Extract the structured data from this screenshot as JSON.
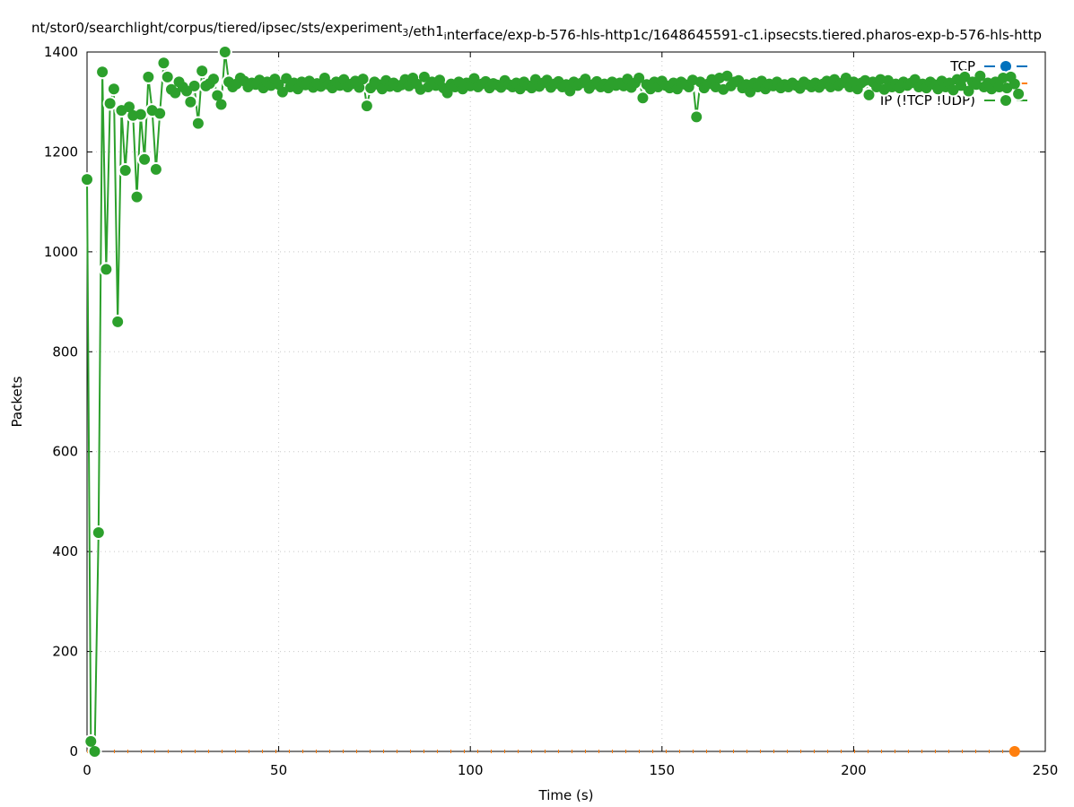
{
  "chart_data": {
    "type": "line",
    "title": "nt/stor0/searchlight/corpus/tiered/ipsec/sts/experiment_3/eth1_interface/exp-b-576-hls-http1c/1648645591-c1.ipsecsts.tiered.pharos-exp-b-576-hls-http",
    "xlabel": "Time (s)",
    "ylabel": "Packets",
    "xlim": [
      0,
      250
    ],
    "ylim": [
      0,
      1400
    ],
    "xticks": [
      "0",
      "50",
      "100",
      "150",
      "200",
      "250"
    ],
    "yticks": [
      "0",
      "200",
      "400",
      "600",
      "800",
      "1000",
      "1200",
      "1400"
    ],
    "grid": true,
    "legend_placement": "top-right",
    "series": [
      {
        "name": "TCP",
        "color": "#0072bd",
        "x": [],
        "values": []
      },
      {
        "name": "UDP",
        "color": "#ff7f0e",
        "x": [
          0,
          242
        ],
        "values": [
          0,
          0
        ]
      },
      {
        "name": "IP (!TCP !UDP)",
        "color": "#2ca02c",
        "values": [
          1145,
          20,
          0,
          438,
          1360,
          965,
          1297,
          1326,
          860,
          1283,
          1163,
          1290,
          1273,
          1110,
          1275,
          1185,
          1350,
          1283,
          1165,
          1277,
          1378,
          1350,
          1325,
          1318,
          1340,
          1330,
          1322,
          1300,
          1332,
          1257,
          1362,
          1332,
          1337,
          1346,
          1313,
          1295,
          1400,
          1340,
          1330,
          1336,
          1348,
          1342,
          1330,
          1338,
          1335,
          1344,
          1328,
          1340,
          1333,
          1346,
          1335,
          1320,
          1347,
          1330,
          1338,
          1326,
          1340,
          1334,
          1342,
          1329,
          1337,
          1331,
          1348,
          1335,
          1328,
          1340,
          1333,
          1345,
          1330,
          1336,
          1342,
          1329,
          1346,
          1292,
          1328,
          1340,
          1335,
          1326,
          1343,
          1331,
          1338,
          1330,
          1334,
          1345,
          1332,
          1348,
          1336,
          1325,
          1350,
          1330,
          1340,
          1333,
          1344,
          1328,
          1318,
          1336,
          1330,
          1340,
          1326,
          1338,
          1332,
          1347,
          1330,
          1336,
          1341,
          1328,
          1337,
          1334,
          1329,
          1343,
          1335,
          1330,
          1338,
          1326,
          1340,
          1333,
          1328,
          1345,
          1331,
          1338,
          1344,
          1329,
          1336,
          1341,
          1330,
          1335,
          1322,
          1340,
          1333,
          1338,
          1346,
          1327,
          1335,
          1341,
          1330,
          1336,
          1328,
          1340,
          1333,
          1338,
          1332,
          1346,
          1329,
          1338,
          1348,
          1308,
          1335,
          1326,
          1340,
          1330,
          1342,
          1333,
          1328,
          1338,
          1326,
          1340,
          1335,
          1330,
          1344,
          1270,
          1340,
          1328,
          1336,
          1345,
          1330,
          1348,
          1325,
          1352,
          1332,
          1340,
          1343,
          1328,
          1335,
          1320,
          1338,
          1330,
          1342,
          1326,
          1336,
          1332,
          1340,
          1328,
          1335,
          1330,
          1338,
          1333,
          1327,
          1340,
          1335,
          1330,
          1338,
          1329,
          1336,
          1342,
          1330,
          1345,
          1332,
          1338,
          1348,
          1330,
          1340,
          1326,
          1338,
          1343,
          1314,
          1340,
          1330,
          1345,
          1325,
          1343,
          1330,
          1336,
          1328,
          1340,
          1333,
          1338,
          1345,
          1330,
          1336,
          1328,
          1340,
          1335,
          1326,
          1342,
          1330,
          1338,
          1324,
          1345,
          1333,
          1350,
          1322,
          1340,
          1335,
          1352,
          1330,
          1338,
          1326,
          1340,
          1330,
          1348,
          1328,
          1350,
          1336,
          1316
        ]
      }
    ]
  }
}
